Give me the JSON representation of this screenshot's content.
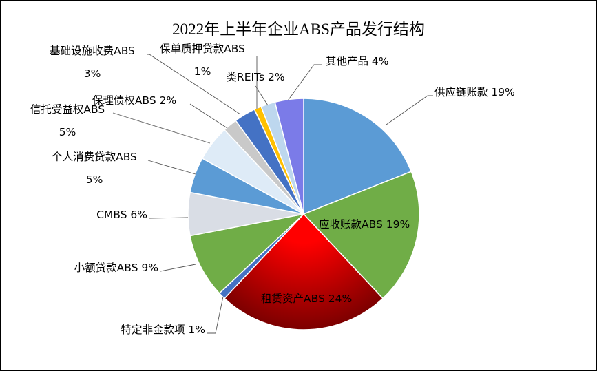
{
  "chart_data": {
    "type": "pie",
    "title": "2022年上半年企业ABS产品发行结构",
    "slices": [
      {
        "name": "供应链账款",
        "label_lines": [
          "供应链账款 19%"
        ],
        "value": 19,
        "color": "#5b9bd5"
      },
      {
        "name": "应收账款ABS",
        "label_lines": [
          "应收账款ABS 19%"
        ],
        "value": 19,
        "color": "#70ad47"
      },
      {
        "name": "租赁资产ABS",
        "label_lines": [
          "租赁资产ABS 24%"
        ],
        "value": 24,
        "color": "#c00000",
        "gradient": true
      },
      {
        "name": "特定非金款项",
        "label_lines": [
          "特定非金款项 1%"
        ],
        "value": 1,
        "color": "#4472c4"
      },
      {
        "name": "小额贷款ABS",
        "label_lines": [
          "小额贷款ABS 9%"
        ],
        "value": 9,
        "color": "#70ad47"
      },
      {
        "name": "CMBS",
        "label_lines": [
          "CMBS 6%"
        ],
        "value": 6,
        "color": "#d9dde5"
      },
      {
        "name": "个人消费贷款ABS",
        "label_lines": [
          "个人消费贷款ABS",
          "5%"
        ],
        "value": 5,
        "color": "#5b9bd5"
      },
      {
        "name": "信托受益权ABS",
        "label_lines": [
          "信托受益权ABS",
          "5%"
        ],
        "value": 5,
        "color": "#deebf7"
      },
      {
        "name": "保理债权ABS",
        "label_lines": [
          "保理债权ABS 2%"
        ],
        "value": 2,
        "color": "#c9c9c9"
      },
      {
        "name": "基础设施收费ABS",
        "label_lines": [
          "基础设施收费ABS",
          "3%"
        ],
        "value": 3,
        "color": "#4472c4"
      },
      {
        "name": "保单质押贷款ABS",
        "label_lines": [
          "保单质押贷款ABS",
          "1%"
        ],
        "value": 1,
        "color": "#ffc000"
      },
      {
        "name": "类REITs",
        "label_lines": [
          "类REITs 2%"
        ],
        "value": 2,
        "color": "#bdd7ee"
      },
      {
        "name": "其他产品",
        "label_lines": [
          "其他产品 4%"
        ],
        "value": 4,
        "color": "#7b7be8"
      }
    ],
    "legend": "none",
    "data_labels": "outside-with-leader-lines"
  }
}
